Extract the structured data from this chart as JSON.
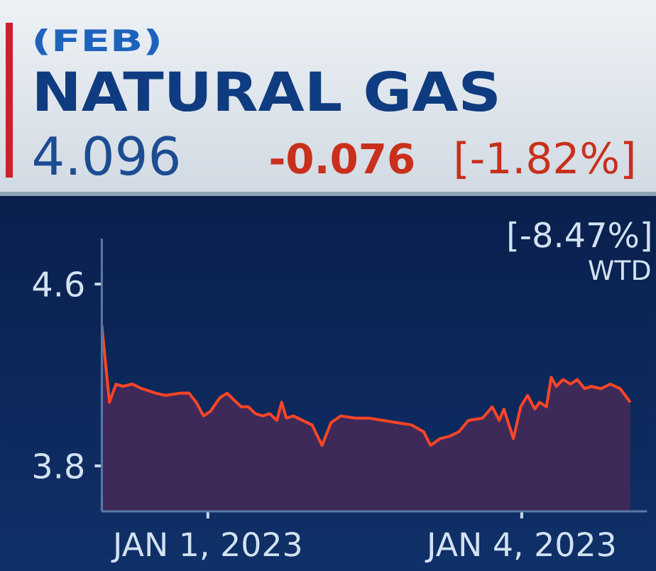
{
  "chart_data": {
    "type": "area",
    "title": "NATURAL GAS",
    "subtitle": "(FEB)",
    "annotations": [
      "4.096",
      "-0.076",
      "[-1.82%]",
      "[-8.47%]",
      "WTD"
    ],
    "x": [
      "2022-12-30T23:40",
      "2022-12-31T01:25",
      "2022-12-31T02:55",
      "2022-12-31T04:30",
      "2022-12-31T06:40",
      "2022-12-31T08:50",
      "2022-12-31T12:05",
      "2022-12-31T14:15",
      "2022-12-31T17:35",
      "2022-12-31T19:40",
      "2022-12-31T21:20",
      "2022-12-31T23:00",
      "2023-01-01T00:35",
      "2023-01-01T02:45",
      "2023-01-01T04:25",
      "2023-01-01T06:00",
      "2023-01-01T07:40",
      "2023-01-01T09:15",
      "2023-01-01T10:55",
      "2023-01-01T12:35",
      "2023-01-01T14:10",
      "2023-01-01T15:50",
      "2023-01-01T16:55",
      "2023-01-01T18:00",
      "2023-01-01T19:35",
      "2023-01-01T21:45",
      "2023-01-01T23:55",
      "2023-01-02T02:10",
      "2023-01-02T04:15",
      "2023-01-02T06:30",
      "2023-01-02T09:45",
      "2023-01-02T13:00",
      "2023-01-02T16:15",
      "2023-01-02T19:30",
      "2023-01-02T22:45",
      "2023-01-03T01:30",
      "2023-01-03T03:05",
      "2023-01-03T05:15",
      "2023-01-03T07:25",
      "2023-01-03T09:35",
      "2023-01-03T11:45",
      "2023-01-03T15:00",
      "2023-01-03T17:15",
      "2023-01-03T18:50",
      "2023-01-03T19:55",
      "2023-01-03T22:05",
      "2023-01-03T23:45",
      "2023-01-04T01:20",
      "2023-01-04T03:00",
      "2023-01-04T04:05",
      "2023-01-04T05:40",
      "2023-01-04T06:45",
      "2023-01-04T07:55",
      "2023-01-04T09:30",
      "2023-01-04T11:10",
      "2023-01-04T12:45",
      "2023-01-04T14:25",
      "2023-01-04T16:00",
      "2023-01-04T18:10",
      "2023-01-04T20:20",
      "2023-01-04T22:35",
      "2023-01-05T00:55"
    ],
    "series": [
      {
        "color": "#3e2a58",
        "values": [
          4.42,
          4.08,
          4.16,
          4.15,
          4.16,
          4.14,
          4.12,
          4.11,
          4.12,
          4.12,
          4.08,
          4.02,
          4.04,
          4.1,
          4.12,
          4.09,
          4.06,
          4.06,
          4.03,
          4.02,
          4.03,
          4.0,
          4.08,
          4.01,
          4.02,
          4.0,
          3.98,
          3.89,
          3.99,
          4.02,
          4.01,
          4.01,
          4.0,
          3.99,
          3.98,
          3.95,
          3.89,
          3.92,
          3.93,
          3.95,
          4.0,
          4.01,
          4.06,
          4.0,
          4.05,
          3.92,
          4.06,
          4.11,
          4.05,
          4.08,
          4.06,
          4.19,
          4.15,
          4.18,
          4.16,
          4.18,
          4.14,
          4.15,
          4.14,
          4.16,
          4.14,
          4.08
        ]
      },
      {
        "type": "line",
        "color": "#ff4526",
        "values": [
          4.42,
          4.08,
          4.16,
          4.15,
          4.16,
          4.14,
          4.12,
          4.11,
          4.12,
          4.12,
          4.08,
          4.02,
          4.04,
          4.1,
          4.12,
          4.09,
          4.06,
          4.06,
          4.03,
          4.02,
          4.03,
          4.0,
          4.08,
          4.01,
          4.02,
          4.0,
          3.98,
          3.89,
          3.99,
          4.02,
          4.01,
          4.01,
          4.0,
          3.99,
          3.98,
          3.95,
          3.89,
          3.92,
          3.93,
          3.95,
          4.0,
          4.01,
          4.06,
          4.0,
          4.05,
          3.92,
          4.06,
          4.11,
          4.05,
          4.08,
          4.06,
          4.19,
          4.15,
          4.18,
          4.16,
          4.18,
          4.14,
          4.15,
          4.14,
          4.16,
          4.14,
          4.08
        ]
      }
    ],
    "xlim": [
      "2022-12-30T23:40",
      "2023-01-05T04:45"
    ],
    "xticks": [
      {
        "value": "2023-01-01",
        "label": "JAN 1, 2023"
      },
      {
        "value": "2023-01-04",
        "label": "JAN 4, 2023"
      }
    ],
    "ylim": [
      3.6,
      4.8
    ],
    "yticks": [
      3.8,
      4.6
    ]
  }
}
